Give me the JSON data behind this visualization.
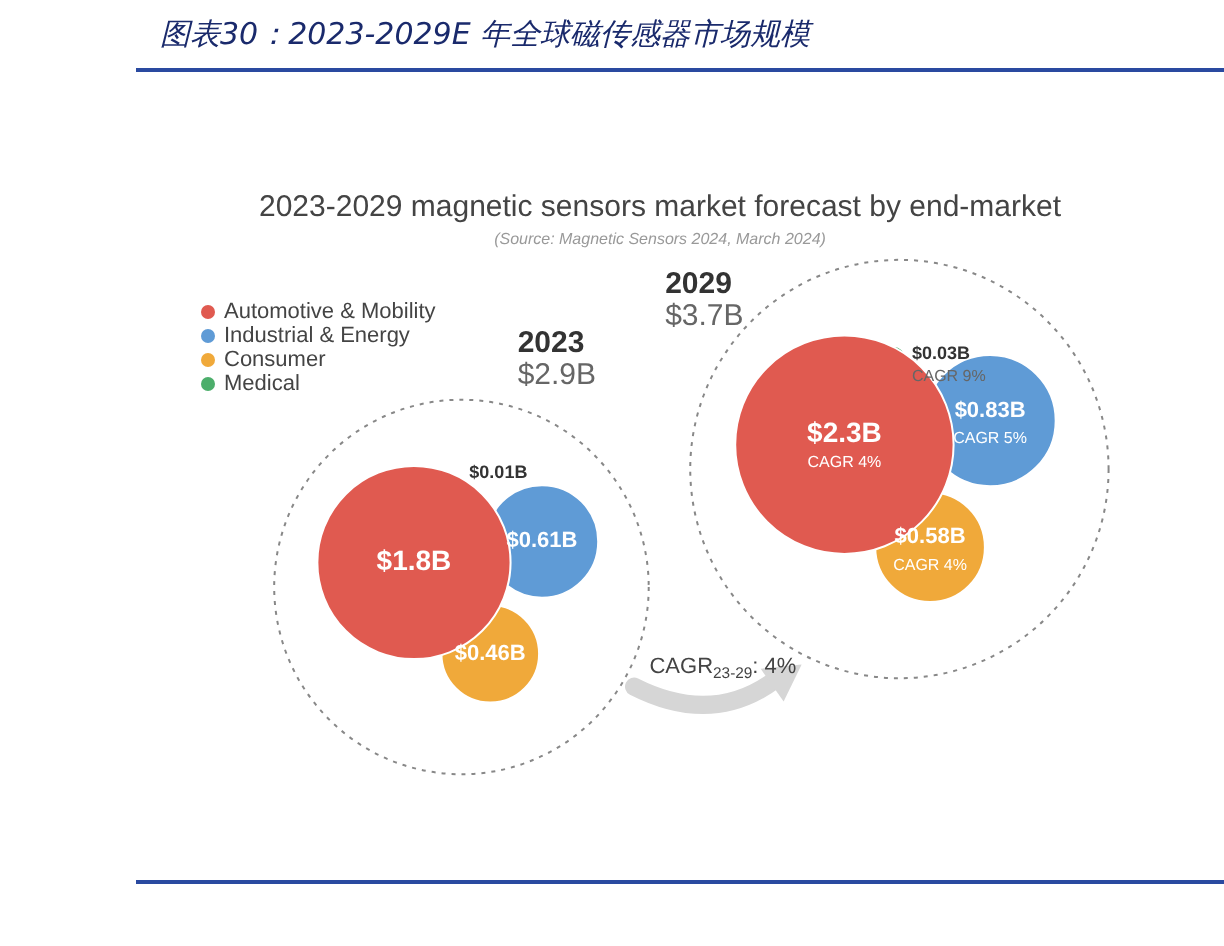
{
  "chart_data": {
    "type": "other",
    "title": "图表30：2023-2029E 年全球磁传感器市场规模",
    "subtitle": "2023-2029 magnetic sensors market forecast by end-market",
    "categories": [
      "2023",
      "2029"
    ],
    "totals": [
      "$2.9B",
      "$3.7B"
    ],
    "legend": "left",
    "series": [
      {
        "name": "Automotive & Mobility",
        "color": "#e05a50",
        "values": [
          1.8,
          2.3
        ],
        "value_labels": [
          "$1.8B",
          "$2.3B"
        ]
      },
      {
        "name": "Industrial & Energy",
        "color": "#5f9bd6",
        "values": [
          0.61,
          0.83
        ],
        "value_labels": [
          "$0.61B",
          "$0.83B"
        ]
      },
      {
        "name": "Consumer",
        "color": "#f0a93a",
        "values": [
          0.46,
          0.58
        ],
        "value_labels": [
          "$0.46B",
          "$0.58B"
        ]
      },
      {
        "name": "Medical",
        "color": "#4cae6b",
        "values": [
          0.01,
          0.03
        ],
        "value_labels": [
          "$0.01B",
          "$0.03B"
        ]
      }
    ],
    "annotations": [
      "(Source: Magnetic Sensors 2024, March 2024)",
      "CAGR$_{23-29}$: 4%",
      "CAGR 4%",
      "CAGR 5%",
      "CAGR 4%",
      "CAGR 9%"
    ]
  }
}
